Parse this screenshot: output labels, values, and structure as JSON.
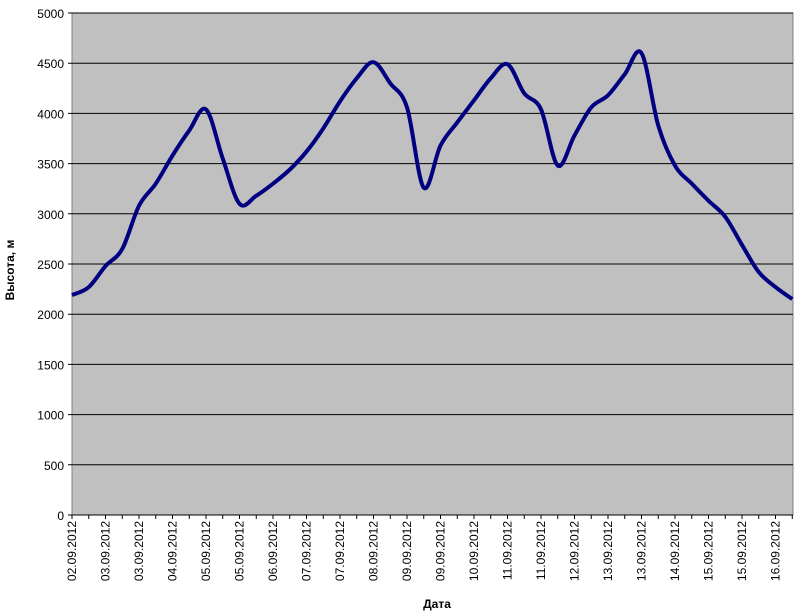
{
  "chart_data": {
    "type": "line",
    "x_label": "Дата",
    "y_label": "Высота, м",
    "categories": [
      "02.09.2012",
      null,
      "03.09.2012",
      null,
      "03.09.2012",
      null,
      "04.09.2012",
      null,
      "05.09.2012",
      null,
      "05.09.2012",
      null,
      "06.09.2012",
      null,
      "07.09.2012",
      null,
      "07.09.2012",
      null,
      "08.09.2012",
      null,
      "09.09.2012",
      null,
      "09.09.2012",
      null,
      "10.09.2012",
      null,
      "11.09.2012",
      null,
      "11.09.2012",
      null,
      "12.09.2012",
      null,
      "13.09.2012",
      null,
      "13.09.2012",
      null,
      "14.09.2012",
      null,
      "15.09.2012",
      null,
      "15.09.2012",
      null,
      "16.09.2012",
      null
    ],
    "values": [
      2190,
      2270,
      2480,
      2650,
      3080,
      3300,
      3580,
      3830,
      4040,
      3550,
      3100,
      3180,
      3300,
      3440,
      3620,
      3850,
      4120,
      4350,
      4510,
      4300,
      4060,
      3260,
      3680,
      3910,
      4130,
      4350,
      4490,
      4200,
      4040,
      3480,
      3780,
      4060,
      4180,
      4390,
      4600,
      3880,
      3480,
      3300,
      3130,
      2970,
      2690,
      2420,
      2270,
      2150
    ],
    "color": "#000080",
    "ylim": [
      0,
      5000
    ],
    "yticks": [
      0,
      500,
      1000,
      1500,
      2000,
      2500,
      3000,
      3500,
      4000,
      4500,
      5000
    ],
    "grid": true,
    "plot_background": "#c0c0c0"
  }
}
